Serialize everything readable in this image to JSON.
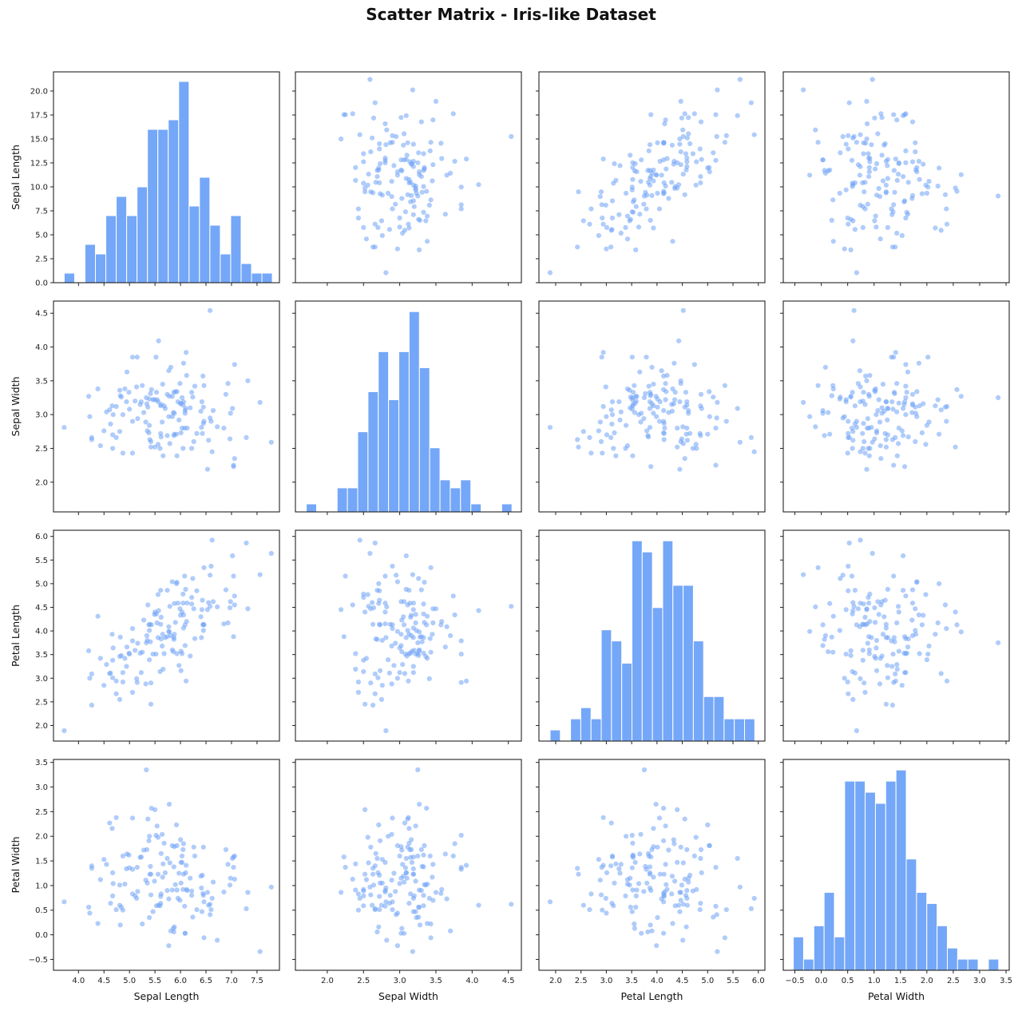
{
  "figure": {
    "title": "Scatter Matrix - Iris-like Dataset"
  },
  "style": {
    "point_color": "#6FA3F5",
    "point_alpha": 0.55,
    "bar_color": "#74A7F7",
    "bar_edge": "#FFFFFF",
    "axis_color": "#222222"
  },
  "chart_data": {
    "type": "scatter_matrix",
    "title": "Scatter Matrix - Iris-like Dataset",
    "variables": [
      "Sepal Length",
      "Sepal Width",
      "Petal Length",
      "Petal Width"
    ],
    "grid": false,
    "diagonal": "histogram",
    "axis_ranges": {
      "Sepal Length": [
        3.51,
        7.94
      ],
      "Sepal Width": [
        1.56,
        4.68
      ],
      "Petal Length": [
        1.67,
        6.13
      ],
      "Petal Width": [
        -0.72,
        3.56
      ]
    },
    "ticks": {
      "Sepal Length": [
        4.0,
        4.5,
        5.0,
        5.5,
        6.0,
        6.5,
        7.0,
        7.5
      ],
      "Sepal Width": [
        2.0,
        2.5,
        3.0,
        3.5,
        4.0,
        4.5
      ],
      "Petal Length": [
        2.0,
        2.5,
        3.0,
        3.5,
        4.0,
        4.5,
        5.0,
        5.5,
        6.0
      ],
      "Petal Width": [
        -0.5,
        0.0,
        0.5,
        1.0,
        1.5,
        2.0,
        2.5,
        3.0,
        3.5
      ]
    },
    "tick_labels": {
      "Sepal Length": [
        "4.0",
        "4.5",
        "5.0",
        "5.5",
        "6.0",
        "6.5",
        "7.0",
        "7.5"
      ],
      "Sepal Width": [
        "2.0",
        "2.5",
        "3.0",
        "3.5",
        "4.0",
        "4.5"
      ],
      "Petal Length": [
        "2.0",
        "2.5",
        "3.0",
        "3.5",
        "4.0",
        "4.5",
        "5.0",
        "5.5",
        "6.0"
      ],
      "Petal Width": [
        "−0.5",
        "0.0",
        "0.5",
        "1.0",
        "1.5",
        "2.0",
        "2.5",
        "3.0",
        "3.5"
      ]
    },
    "histogram_count_axis": {
      "ylim": [
        0,
        22
      ],
      "ticks": [
        0.0,
        2.5,
        5.0,
        7.5,
        10.0,
        12.5,
        15.0,
        17.5,
        20.0
      ],
      "tick_labels": [
        "0.0",
        "2.5",
        "5.0",
        "7.5",
        "10.0",
        "12.5",
        "15.0",
        "17.5",
        "20.0"
      ]
    },
    "histograms": {
      "Sepal Length": {
        "bins": 20,
        "range": [
          3.72,
          7.8
        ],
        "counts": [
          1,
          0,
          4,
          3,
          7,
          9,
          7,
          10,
          16,
          16,
          17,
          21,
          8,
          11,
          6,
          3,
          7,
          2,
          1,
          1
        ]
      },
      "Sepal Width": {
        "bins": 20,
        "range": [
          1.71,
          4.55
        ],
        "counts": [
          1,
          0,
          0,
          3,
          3,
          10,
          15,
          20,
          14,
          20,
          25,
          18,
          8,
          4,
          3,
          4,
          1,
          0,
          0,
          1
        ]
      },
      "Petal Length": {
        "bins": 20,
        "range": [
          1.89,
          5.93
        ],
        "counts": [
          1,
          0,
          2,
          3,
          2,
          10,
          9,
          7,
          18,
          17,
          12,
          18,
          14,
          14,
          9,
          4,
          4,
          2,
          2,
          2
        ]
      },
      "Petal Width": {
        "bins": 20,
        "range": [
          -0.53,
          3.36
        ],
        "counts": [
          3,
          1,
          4,
          7,
          3,
          17,
          17,
          16,
          15,
          17,
          18,
          10,
          7,
          6,
          4,
          2,
          1,
          1,
          0,
          1
        ]
      }
    },
    "points_columns": [
      "Sepal Length",
      "Sepal Width",
      "Petal Length",
      "Petal Width"
    ],
    "points": [
      [
        3.72,
        2.81,
        1.89,
        0.67
      ],
      [
        4.2,
        3.27,
        3.58,
        0.56
      ],
      [
        4.22,
        2.97,
        3.0,
        0.44
      ],
      [
        4.26,
        2.66,
        3.09,
        1.4
      ],
      [
        4.26,
        2.63,
        2.43,
        1.35
      ],
      [
        4.38,
        3.38,
        4.31,
        0.23
      ],
      [
        4.43,
        2.54,
        3.42,
        1.12
      ],
      [
        4.5,
        2.76,
        2.85,
        1.53
      ],
      [
        4.55,
        3.04,
        3.29,
        1.43
      ],
      [
        4.61,
        3.07,
        3.1,
        2.27
      ],
      [
        4.63,
        2.86,
        3.11,
        0.64
      ],
      [
        4.66,
        3.13,
        3.93,
        2.16
      ],
      [
        4.67,
        2.7,
        3.01,
        1.26
      ],
      [
        4.67,
        2.5,
        3.38,
        0.79
      ],
      [
        4.68,
        3.0,
        3.64,
        1.04
      ],
      [
        4.74,
        2.66,
        2.67,
        0.51
      ],
      [
        4.74,
        3.12,
        2.94,
        2.38
      ],
      [
        4.81,
        3.36,
        3.46,
        1.01
      ],
      [
        4.81,
        2.75,
        2.55,
        0.6
      ],
      [
        4.82,
        3.28,
        3.87,
        0.2
      ],
      [
        4.84,
        3.26,
        3.48,
        0.56
      ],
      [
        4.87,
        2.43,
        2.92,
        0.5
      ],
      [
        4.87,
        3.0,
        3.12,
        1.6
      ],
      [
        4.91,
        3.38,
        3.42,
        1.03
      ],
      [
        4.94,
        3.19,
        3.25,
        1.34
      ],
      [
        4.95,
        3.63,
        3.66,
        1.64
      ],
      [
        4.99,
        3.33,
        3.53,
        1.62
      ],
      [
        5.0,
        3.08,
        3.51,
        1.36
      ],
      [
        5.06,
        2.9,
        4.05,
        2.37
      ],
      [
        5.06,
        2.43,
        2.7,
        0.83
      ],
      [
        5.06,
        3.85,
        3.79,
        1.33
      ],
      [
        5.11,
        3.2,
        3.59,
        0.79
      ],
      [
        5.14,
        3.41,
        2.99,
        0.74
      ],
      [
        5.15,
        3.85,
        2.91,
        1.37
      ],
      [
        5.16,
        2.94,
        3.74,
        0.88
      ],
      [
        5.21,
        3.15,
        3.53,
        1.57
      ],
      [
        5.23,
        3.19,
        3.12,
        1.58
      ],
      [
        5.25,
        3.43,
        3.55,
        0.22
      ],
      [
        5.28,
        3.03,
        4.23,
        1.72
      ],
      [
        5.32,
        2.89,
        2.88,
        1.11
      ],
      [
        5.33,
        3.25,
        3.75,
        3.35
      ],
      [
        5.34,
        3.16,
        3.9,
        1.73
      ],
      [
        5.35,
        2.76,
        3.8,
        1.05
      ],
      [
        5.36,
        3.11,
        4.55,
        2.35
      ],
      [
        5.38,
        2.73,
        4.13,
        1.91
      ],
      [
        5.39,
        2.84,
        3.39,
        2.0
      ],
      [
        5.39,
        3.23,
        4.01,
        0.35
      ],
      [
        5.4,
        2.63,
        4.14,
        1.23
      ],
      [
        5.41,
        3.31,
        3.77,
        1.39
      ],
      [
        5.42,
        2.6,
        2.9,
        0.81
      ],
      [
        5.42,
        2.52,
        2.45,
        1.23
      ],
      [
        5.43,
        3.37,
        4.13,
        2.57
      ],
      [
        5.46,
        3.22,
        3.51,
        0.47
      ],
      [
        5.49,
        3.22,
        4.35,
        1.09
      ],
      [
        5.5,
        2.52,
        4.4,
        2.54
      ],
      [
        5.52,
        3.85,
        3.51,
        2.02
      ],
      [
        5.53,
        3.33,
        4.36,
        0.59
      ],
      [
        5.54,
        3.22,
        4.17,
        2.21
      ],
      [
        5.56,
        3.19,
        3.86,
        1.23
      ],
      [
        5.56,
        2.56,
        4.77,
        1.98
      ],
      [
        5.57,
        4.09,
        4.43,
        0.6
      ],
      [
        5.6,
        2.5,
        3.14,
        0.59
      ],
      [
        5.61,
        3.13,
        4.86,
        0.64
      ],
      [
        5.61,
        2.72,
        4.14,
        0.78
      ],
      [
        5.62,
        2.67,
        3.83,
        1.65
      ],
      [
        5.62,
        3.15,
        4.29,
        0.83
      ],
      [
        5.64,
        2.89,
        3.68,
        2.04
      ],
      [
        5.65,
        3.45,
        3.93,
        1.17
      ],
      [
        5.66,
        2.39,
        3.19,
        1.44
      ],
      [
        5.68,
        3.13,
        3.52,
        1.86
      ],
      [
        5.7,
        3.09,
        3.86,
        1.26
      ],
      [
        5.74,
        2.69,
        4.86,
        1.55
      ],
      [
        5.74,
        3.3,
        3.88,
        0.9
      ],
      [
        5.77,
        3.65,
        4.09,
        0.73
      ],
      [
        5.77,
        2.97,
        3.99,
        -0.22
      ],
      [
        5.78,
        3.27,
        3.98,
        2.65
      ],
      [
        5.79,
        2.57,
        4.52,
        1.46
      ],
      [
        5.81,
        3.7,
        3.9,
        0.08
      ],
      [
        5.84,
        2.97,
        5.04,
        1.81
      ],
      [
        5.84,
        3.27,
        3.6,
        0.91
      ],
      [
        5.86,
        3.03,
        3.56,
        0.13
      ],
      [
        5.87,
        2.69,
        3.82,
        0.06
      ],
      [
        5.87,
        3.33,
        3.86,
        1.38
      ],
      [
        5.88,
        3.02,
        3.93,
        1.79
      ],
      [
        5.88,
        2.71,
        4.58,
        0.16
      ],
      [
        5.9,
        3.34,
        4.18,
        1.02
      ],
      [
        5.92,
        2.71,
        5.0,
        2.23
      ],
      [
        5.93,
        3.34,
        5.03,
        1.81
      ],
      [
        5.93,
        2.39,
        3.52,
        0.91
      ],
      [
        5.95,
        3.19,
        4.59,
        0.74
      ],
      [
        5.97,
        2.92,
        3.27,
        1.25
      ],
      [
        5.99,
        3.46,
        4.47,
        0.7
      ],
      [
        6.0,
        3.16,
        4.33,
        1.93
      ],
      [
        6.01,
        2.73,
        3.16,
        1.05
      ],
      [
        6.01,
        3.17,
        3.57,
        1.47
      ],
      [
        6.03,
        2.8,
        4.4,
        1.47
      ],
      [
        6.03,
        3.25,
        3.52,
        1.6
      ],
      [
        6.05,
        2.5,
        4.78,
        0.92
      ],
      [
        6.05,
        3.14,
        4.59,
        1.73
      ],
      [
        6.06,
        3.76,
        4.34,
        1.85
      ],
      [
        6.06,
        3.19,
        4.06,
        1.23
      ],
      [
        6.08,
        2.8,
        5.16,
        0.58
      ],
      [
        6.09,
        3.06,
        4.13,
        0.03
      ],
      [
        6.09,
        3.02,
        3.69,
        0.03
      ],
      [
        6.1,
        3.09,
        4.88,
        1.26
      ],
      [
        6.11,
        3.92,
        2.94,
        1.41
      ],
      [
        6.12,
        3.58,
        4.2,
        0.92
      ],
      [
        6.13,
        2.8,
        4.59,
        0.9
      ],
      [
        6.19,
        3.1,
        3.47,
        1.15
      ],
      [
        6.22,
        2.5,
        4.71,
        0.89
      ],
      [
        6.22,
        3.33,
        4.57,
        0.8
      ],
      [
        6.24,
        3.26,
        5.11,
        0.36
      ],
      [
        6.26,
        2.6,
        4.47,
        1.78
      ],
      [
        6.28,
        3.42,
        3.84,
        1.6
      ],
      [
        6.32,
        2.72,
        4.85,
        0.51
      ],
      [
        6.4,
        3.05,
        4.3,
        1.19
      ],
      [
        6.41,
        2.81,
        3.86,
        0.95
      ],
      [
        6.42,
        3.19,
        4.45,
        0.47
      ],
      [
        6.43,
        2.72,
        4.65,
        1.21
      ],
      [
        6.44,
        3.57,
        4.13,
        0.84
      ],
      [
        6.45,
        2.87,
        4.14,
        0.8
      ],
      [
        6.45,
        3.11,
        4.01,
        1.78
      ],
      [
        6.46,
        3.43,
        5.34,
        -0.06
      ],
      [
        6.46,
        2.9,
        4.13,
        0.67
      ],
      [
        6.53,
        2.19,
        4.45,
        0.86
      ],
      [
        6.55,
        2.62,
        4.6,
        0.6
      ],
      [
        6.58,
        2.95,
        5.18,
        0.41
      ],
      [
        6.58,
        4.54,
        4.52,
        0.62
      ],
      [
        6.6,
        2.9,
        5.37,
        0.51
      ],
      [
        6.62,
        2.45,
        5.92,
        0.74
      ],
      [
        6.64,
        3.06,
        4.62,
        1.07
      ],
      [
        6.72,
        2.82,
        4.51,
        -0.11
      ],
      [
        6.85,
        2.8,
        4.15,
        0.87
      ],
      [
        6.89,
        3.3,
        4.87,
        1.73
      ],
      [
        6.93,
        3.46,
        4.17,
        1.43
      ],
      [
        6.97,
        2.64,
        4.49,
        1.01
      ],
      [
        6.98,
        3.02,
        4.62,
        1.15
      ],
      [
        7.02,
        3.09,
        5.59,
        1.55
      ],
      [
        7.04,
        2.23,
        3.88,
        1.58
      ],
      [
        7.04,
        2.25,
        5.16,
        1.37
      ],
      [
        7.06,
        3.74,
        4.74,
        1.6
      ],
      [
        7.06,
        2.35,
        4.55,
        1.13
      ],
      [
        7.29,
        2.66,
        5.86,
        0.53
      ],
      [
        7.32,
        3.5,
        4.47,
        0.86
      ],
      [
        7.56,
        3.18,
        5.19,
        -0.34
      ],
      [
        7.78,
        2.59,
        5.64,
        0.97
      ]
    ]
  }
}
